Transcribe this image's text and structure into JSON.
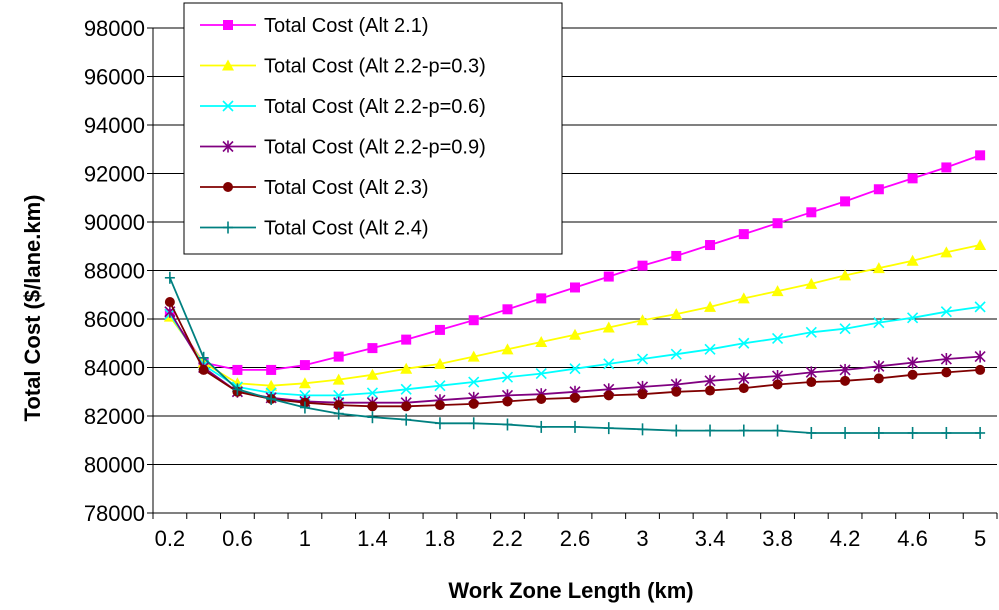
{
  "chart_data": {
    "type": "line",
    "title": "",
    "xlabel": "Work Zone Length (km)",
    "ylabel": "Total Cost ($/lane.km)",
    "ylim": [
      78000,
      98000
    ],
    "y_ticks": [
      78000,
      80000,
      82000,
      84000,
      86000,
      88000,
      90000,
      92000,
      94000,
      96000,
      98000
    ],
    "x_tick_labels": [
      "0.2",
      "0.6",
      "1",
      "1.4",
      "1.8",
      "2.2",
      "2.6",
      "3",
      "3.4",
      "3.8",
      "4.2",
      "4.6",
      "5"
    ],
    "x": [
      0.2,
      0.4,
      0.6,
      0.8,
      1.0,
      1.2,
      1.4,
      1.6,
      1.8,
      2.0,
      2.2,
      2.4,
      2.6,
      2.8,
      3.0,
      3.2,
      3.4,
      3.6,
      3.8,
      4.0,
      4.2,
      4.4,
      4.6,
      4.8,
      5.0
    ],
    "grid": "horizontal",
    "legend_position": "top-left",
    "series": [
      {
        "name": "Total Cost (Alt 2.1)",
        "color": "#ff00ff",
        "marker": "square",
        "values": [
          86200,
          84200,
          83900,
          83900,
          84100,
          84450,
          84800,
          85150,
          85550,
          85950,
          86400,
          86850,
          87300,
          87750,
          88200,
          88600,
          89050,
          89500,
          89950,
          90400,
          90850,
          91350,
          91800,
          92250,
          92750
        ]
      },
      {
        "name": "Total Cost (Alt 2.2-p=0.3)",
        "color": "#ffff00",
        "marker": "triangle",
        "values": [
          86100,
          84200,
          83350,
          83250,
          83350,
          83500,
          83700,
          83950,
          84150,
          84450,
          84750,
          85050,
          85350,
          85650,
          85950,
          86200,
          86500,
          86850,
          87150,
          87450,
          87800,
          88100,
          88400,
          88750,
          89050
        ]
      },
      {
        "name": "Total Cost (Alt 2.2-p=0.6)",
        "color": "#00ffff",
        "marker": "x",
        "values": [
          86200,
          84100,
          83200,
          82950,
          82850,
          82850,
          82950,
          83100,
          83250,
          83400,
          83600,
          83750,
          83950,
          84150,
          84350,
          84550,
          84750,
          85000,
          85200,
          85450,
          85600,
          85850,
          86050,
          86300,
          86500
        ]
      },
      {
        "name": "Total Cost (Alt 2.2-p=0.9)",
        "color": "#800080",
        "marker": "star",
        "values": [
          86300,
          84000,
          83000,
          82750,
          82600,
          82550,
          82550,
          82550,
          82650,
          82750,
          82850,
          82900,
          83000,
          83100,
          83200,
          83300,
          83450,
          83550,
          83650,
          83800,
          83900,
          84050,
          84200,
          84350,
          84450
        ]
      },
      {
        "name": "Total Cost (Alt 2.3)",
        "color": "#800000",
        "marker": "circle",
        "values": [
          86700,
          83900,
          83000,
          82700,
          82550,
          82450,
          82400,
          82400,
          82450,
          82500,
          82600,
          82700,
          82750,
          82850,
          82900,
          83000,
          83050,
          83150,
          83300,
          83400,
          83450,
          83550,
          83700,
          83800,
          83900
        ]
      },
      {
        "name": "Total Cost (Alt 2.4)",
        "color": "#008080",
        "marker": "plus",
        "values": [
          87700,
          84400,
          83100,
          82700,
          82350,
          82100,
          81950,
          81850,
          81700,
          81700,
          81650,
          81550,
          81550,
          81500,
          81450,
          81400,
          81400,
          81400,
          81400,
          81300,
          81300,
          81300,
          81300,
          81300,
          81300
        ]
      }
    ]
  }
}
